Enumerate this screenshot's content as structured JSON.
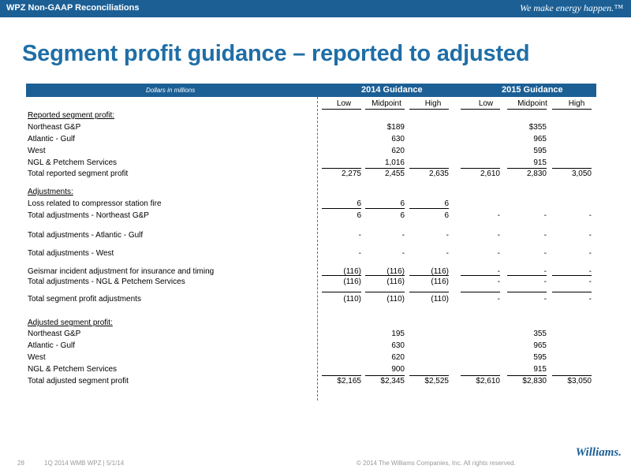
{
  "header": {
    "title": "WPZ Non-GAAP Reconciliations",
    "tagline": "We make energy happen.™"
  },
  "page_title": "Segment profit guidance – reported to adjusted",
  "table": {
    "units_label": "Dollars in millions",
    "group_2014": "2014 Guidance",
    "group_2015": "2015 Guidance",
    "col_labels": [
      "Low",
      "Midpoint",
      "High",
      "Low",
      "Midpoint",
      "High"
    ],
    "rows": [
      {
        "label": "Reported segment profit:",
        "underline": true,
        "values": [
          "",
          "",
          "",
          "",
          "",
          ""
        ]
      },
      {
        "label": "Northeast G&P",
        "values": [
          "",
          "$189",
          "",
          "",
          "$355",
          ""
        ]
      },
      {
        "label": "Atlantic - Gulf",
        "values": [
          "",
          "630",
          "",
          "",
          "965",
          ""
        ]
      },
      {
        "label": "West",
        "values": [
          "",
          "620",
          "",
          "",
          "595",
          ""
        ]
      },
      {
        "label": "NGL & Petchem Services",
        "values": [
          "",
          "1,016",
          "",
          "",
          "915",
          ""
        ]
      },
      {
        "label": "Total reported segment profit",
        "values": [
          "2,275",
          "2,455",
          "2,635",
          "2,610",
          "2,830",
          "3,050"
        ]
      },
      {
        "label": "Adjustments:",
        "underline": true,
        "values": [
          "",
          "",
          "",
          "",
          "",
          ""
        ]
      },
      {
        "label": "Loss related to compressor station fire",
        "values": [
          "6",
          "6",
          "6",
          "",
          "",
          ""
        ]
      },
      {
        "label": "Total adjustments - Northeast G&P",
        "values": [
          "6",
          "6",
          "6",
          "-",
          "-",
          "-"
        ]
      },
      {
        "label": "Total adjustments - Atlantic - Gulf",
        "values": [
          "-",
          "-",
          "-",
          "-",
          "-",
          "-"
        ]
      },
      {
        "label": "Total adjustments - West",
        "values": [
          "-",
          "-",
          "-",
          "-",
          "-",
          "-"
        ]
      },
      {
        "label": "Geismar incident adjustment for insurance and timing",
        "values": [
          "(116)",
          "(116)",
          "(116)",
          "-",
          "-",
          "-"
        ]
      },
      {
        "label": "Total adjustments - NGL & Petchem Services",
        "values": [
          "(116)",
          "(116)",
          "(116)",
          "-",
          "-",
          "-"
        ]
      },
      {
        "label": "Total segment profit adjustments",
        "values": [
          "(110)",
          "(110)",
          "(110)",
          "-",
          "-",
          "-"
        ]
      },
      {
        "label": "Adjusted segment profit:",
        "underline": true,
        "values": [
          "",
          "",
          "",
          "",
          "",
          ""
        ]
      },
      {
        "label": "Northeast G&P",
        "values": [
          "",
          "195",
          "",
          "",
          "355",
          ""
        ]
      },
      {
        "label": "Atlantic - Gulf",
        "values": [
          "",
          "630",
          "",
          "",
          "965",
          ""
        ]
      },
      {
        "label": "West",
        "values": [
          "",
          "620",
          "",
          "",
          "595",
          ""
        ]
      },
      {
        "label": "NGL & Petchem Services",
        "values": [
          "",
          "900",
          "",
          "",
          "915",
          ""
        ]
      },
      {
        "label": "Total adjusted segment profit",
        "values": [
          "$2,165",
          "$2,345",
          "$2,525",
          "$2,610",
          "$2,830",
          "$3,050"
        ]
      }
    ]
  },
  "footer": {
    "page_number": "28",
    "doc_info": "1Q 2014 WMB WPZ  |  5/1/14",
    "copyright": "© 2014 The Williams Companies, Inc. All rights reserved.",
    "logo_text": "Williams."
  }
}
